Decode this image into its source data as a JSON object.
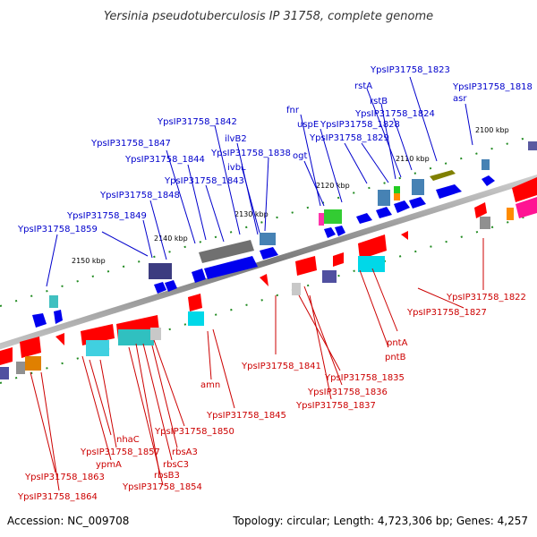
{
  "title": "Yersinia pseudotuberculosis IP 31758, complete genome",
  "footer": {
    "accession": "Accession: NC_009708",
    "summary": "Topology: circular; Length: 4,723,306 bp; Genes: 4,257"
  },
  "colors": {
    "forward_label": "#0000cc",
    "reverse_label": "#cc0000",
    "backbone": "#8a8a8a",
    "tick": "#228b22"
  },
  "scale": [
    "2100 kbp",
    "2110 kbp",
    "2120 kbp",
    "2130 kbp",
    "2140 kbp",
    "2150 kbp"
  ],
  "forward_labels": [
    "YpsIP31758_1823",
    "rstA",
    "asr",
    "YpsIP31758_1818",
    "rstB",
    "YpsIP31758_1824",
    "fnr",
    "uspE",
    "YpsIP31758_1828",
    "YpsIP31758_1842",
    "ogt",
    "YpsIP31758_1829",
    "ilvB2",
    "YpsIP31758_1847",
    "YpsIP31758_1838",
    "ivbL",
    "YpsIP31758_1844",
    "YpsIP31758_1843",
    "YpsIP31758_1848",
    "YpsIP31758_1849",
    "YpsIP31758_1859"
  ],
  "reverse_labels": [
    "YpsIP31758_1822",
    "YpsIP31758_1827",
    "pntA",
    "pntB",
    "YpsIP31758_1841",
    "YpsIP31758_1835",
    "amn",
    "YpsIP31758_1836",
    "YpsIP31758_1837",
    "YpsIP31758_1845",
    "YpsIP31758_1850",
    "nhaC",
    "YpsIP31758_1857",
    "rbsA3",
    "ypmA",
    "rbsC3",
    "YpsIP31758_1863",
    "rbsB3",
    "YpsIP31758_1854",
    "YpsIP31758_1864"
  ]
}
